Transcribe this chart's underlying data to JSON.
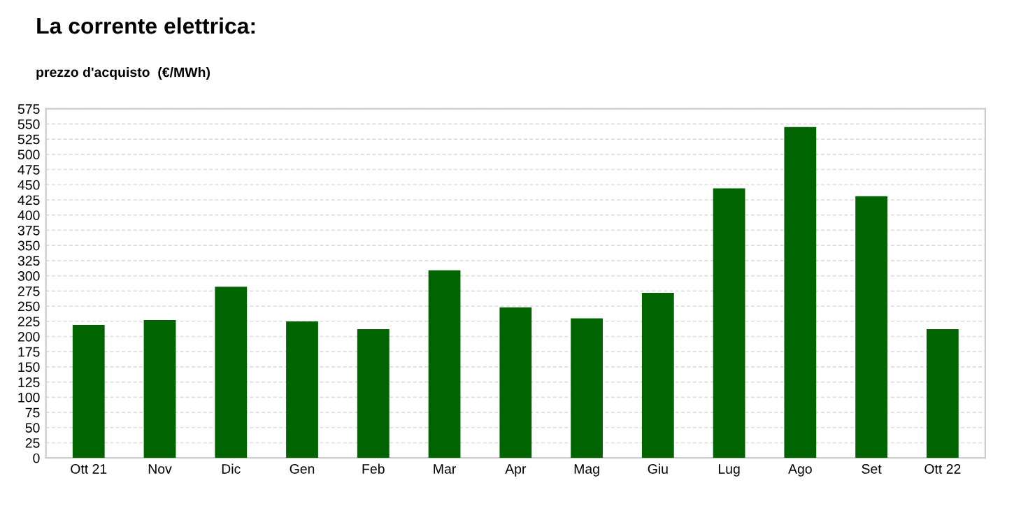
{
  "chart_data": {
    "type": "bar",
    "title": "La corrente elettrica:",
    "subtitle": "prezzo d'acquisto  (€/MWh)",
    "categories": [
      "Ott 21",
      "Nov",
      "Dic",
      "Gen",
      "Feb",
      "Mar",
      "Apr",
      "Mag",
      "Giu",
      "Lug",
      "Ago",
      "Set",
      "Ott 22"
    ],
    "values": [
      219,
      227,
      282,
      225,
      212,
      309,
      248,
      230,
      272,
      444,
      545,
      431,
      212
    ],
    "color": "#006400",
    "ylim": [
      0,
      575
    ],
    "yticks": [
      0,
      25,
      50,
      75,
      100,
      125,
      150,
      175,
      200,
      225,
      250,
      275,
      300,
      325,
      350,
      375,
      400,
      425,
      450,
      475,
      500,
      525,
      550,
      575
    ],
    "grid": "y",
    "legend": false
  }
}
